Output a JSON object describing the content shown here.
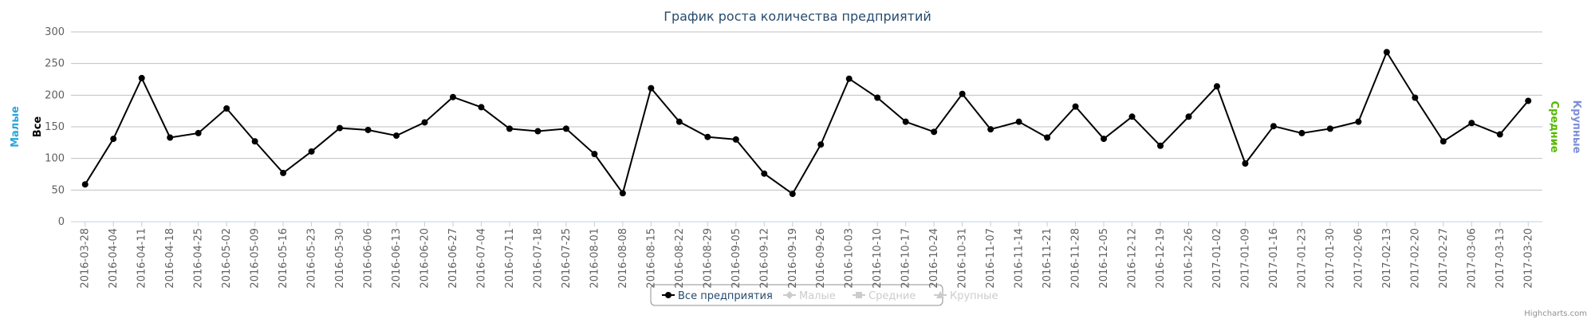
{
  "chart_data": {
    "type": "line",
    "title": "График роста количества предприятий",
    "categories": [
      "2016-03-28",
      "2016-04-04",
      "2016-04-11",
      "2016-04-18",
      "2016-04-25",
      "2016-05-02",
      "2016-05-09",
      "2016-05-16",
      "2016-05-23",
      "2016-05-30",
      "2016-06-06",
      "2016-06-13",
      "2016-06-20",
      "2016-06-27",
      "2016-07-04",
      "2016-07-11",
      "2016-07-18",
      "2016-07-25",
      "2016-08-01",
      "2016-08-08",
      "2016-08-15",
      "2016-08-22",
      "2016-08-29",
      "2016-09-05",
      "2016-09-12",
      "2016-09-19",
      "2016-09-26",
      "2016-10-03",
      "2016-10-10",
      "2016-10-17",
      "2016-10-24",
      "2016-10-31",
      "2016-11-07",
      "2016-11-14",
      "2016-11-21",
      "2016-11-28",
      "2016-12-05",
      "2016-12-12",
      "2016-12-19",
      "2016-12-26",
      "2017-01-02",
      "2017-01-09",
      "2017-01-16",
      "2017-01-23",
      "2017-01-30",
      "2017-02-06",
      "2017-02-13",
      "2017-02-20",
      "2017-02-27",
      "2017-03-06",
      "2017-03-13",
      "2017-03-20"
    ],
    "series": [
      {
        "name": "Все предприятия",
        "color": "#000000",
        "symbol": "circle",
        "visible": true,
        "values": [
          59,
          131,
          227,
          133,
          140,
          179,
          127,
          77,
          111,
          148,
          145,
          136,
          157,
          197,
          181,
          147,
          143,
          147,
          107,
          45,
          211,
          158,
          134,
          130,
          76,
          44,
          122,
          226,
          196,
          158,
          142,
          202,
          146,
          158,
          133,
          182,
          131,
          166,
          120,
          166,
          214,
          92,
          151,
          140,
          147,
          158,
          268,
          196,
          127,
          156,
          138,
          191
        ]
      },
      {
        "name": "Малые",
        "color": "#cccccc",
        "symbol": "diamond",
        "visible": false
      },
      {
        "name": "Средние",
        "color": "#cccccc",
        "symbol": "square",
        "visible": false
      },
      {
        "name": "Крупные",
        "color": "#cccccc",
        "symbol": "triangle",
        "visible": false
      }
    ],
    "axis_titles": [
      {
        "text": "Малые",
        "color": "#2ba4d8",
        "side": "left"
      },
      {
        "text": "Все",
        "color": "#000000",
        "side": "left"
      },
      {
        "text": "Средние",
        "color": "#55b800",
        "side": "right"
      },
      {
        "text": "Крупные",
        "color": "#7c8ed6",
        "side": "right"
      }
    ],
    "ylim": [
      0,
      300
    ],
    "yticks": [
      0,
      50,
      100,
      150,
      200,
      250,
      300
    ],
    "grid": true,
    "legend": "bottom",
    "credits": "Highcharts.com"
  }
}
